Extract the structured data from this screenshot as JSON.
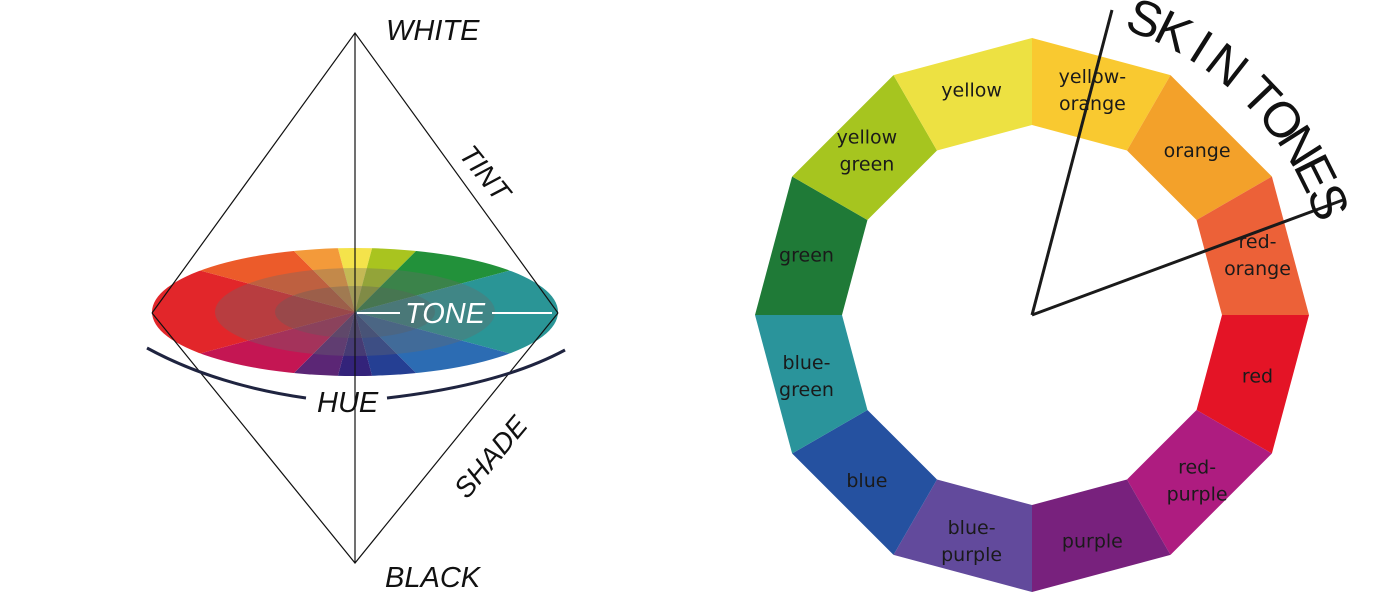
{
  "solid": {
    "labels": {
      "white": "WHITE",
      "tint": "TINT",
      "tone": "TONE",
      "hue": "HUE",
      "shade": "SHADE",
      "black": "BLACK"
    },
    "disk_colors": [
      "#f4e34b",
      "#a9c41f",
      "#22913a",
      "#2a9596",
      "#2c6cb3",
      "#253f93",
      "#33237a",
      "#5b2675",
      "#c41653",
      "#e2262a",
      "#ec5b2a",
      "#f39a3a"
    ]
  },
  "wheel": {
    "title": "SKIN TONES",
    "segments": [
      {
        "lines": [
          "yellow-",
          "orange"
        ],
        "color": "#f9c930"
      },
      {
        "lines": [
          "orange"
        ],
        "color": "#f3a12a"
      },
      {
        "lines": [
          "red-",
          "orange"
        ],
        "color": "#ec6138"
      },
      {
        "lines": [
          "red"
        ],
        "color": "#e41426"
      },
      {
        "lines": [
          "red-",
          "purple"
        ],
        "color": "#ae1c80"
      },
      {
        "lines": [
          "purple"
        ],
        "color": "#78217d"
      },
      {
        "lines": [
          "blue-",
          "purple"
        ],
        "color": "#624a9c"
      },
      {
        "lines": [
          "blue"
        ],
        "color": "#2551a0"
      },
      {
        "lines": [
          "blue-",
          "green"
        ],
        "color": "#2a949b"
      },
      {
        "lines": [
          "green"
        ],
        "color": "#1f7a37"
      },
      {
        "lines": [
          "yellow",
          "green"
        ],
        "color": "#a6c51f"
      },
      {
        "lines": [
          "yellow"
        ],
        "color": "#ede142"
      }
    ]
  }
}
